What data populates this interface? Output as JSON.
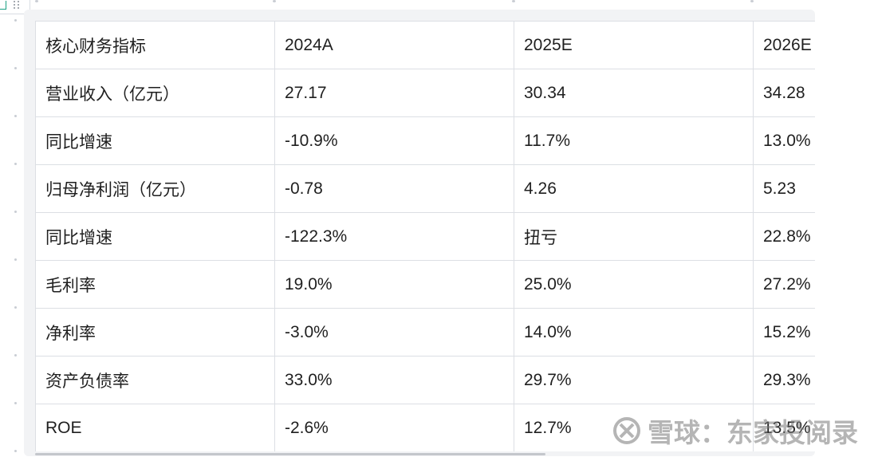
{
  "table": {
    "header": [
      "核心财务指标",
      "2024A",
      "2025E",
      "2026E"
    ],
    "rows": [
      [
        "营业收入（亿元）",
        "27.17",
        "30.34",
        "34.28"
      ],
      [
        "同比增速",
        "-10.9%",
        "11.7%",
        "13.0%"
      ],
      [
        "归母净利润（亿元）",
        "-0.78",
        "4.26",
        "5.23"
      ],
      [
        "同比增速",
        "-122.3%",
        "扭亏",
        "22.8%"
      ],
      [
        "毛利率",
        "19.0%",
        "25.0%",
        "27.2%"
      ],
      [
        "净利率",
        "-3.0%",
        "14.0%",
        "15.2%"
      ],
      [
        "资产负债率",
        "33.0%",
        "29.7%",
        "29.3%"
      ],
      [
        "ROE",
        "-2.6%",
        "12.7%",
        "13.5%"
      ]
    ]
  },
  "watermark": {
    "text": "雪球：东家投阅录",
    "icon": "xueqiu-logo-icon"
  },
  "colors": {
    "border": "#dcdfe4",
    "panel": "#f2f3f5",
    "text": "#1f1f1f",
    "accent": "#1aa083"
  }
}
